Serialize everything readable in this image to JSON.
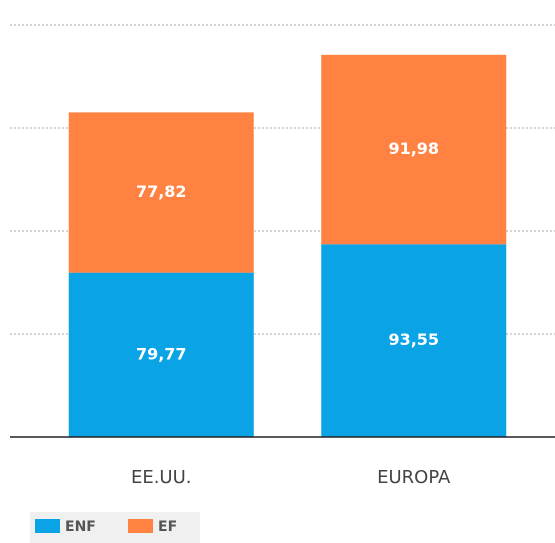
{
  "chart_data": {
    "type": "stacked_bar",
    "categories": [
      "EE.UU.",
      "EUROPA"
    ],
    "series": [
      {
        "name": "ENF",
        "color": "#0aa3e6",
        "values": [
          79.77,
          93.55
        ],
        "value_labels": [
          "79,77",
          "93,55"
        ]
      },
      {
        "name": "EF",
        "color": "#ff8243",
        "values": [
          77.82,
          91.98
        ],
        "value_labels": [
          "77,82",
          "91,98"
        ]
      }
    ],
    "ylim": [
      0,
      200
    ],
    "yticks": [
      0,
      50,
      100,
      150,
      200
    ],
    "grid": true
  }
}
